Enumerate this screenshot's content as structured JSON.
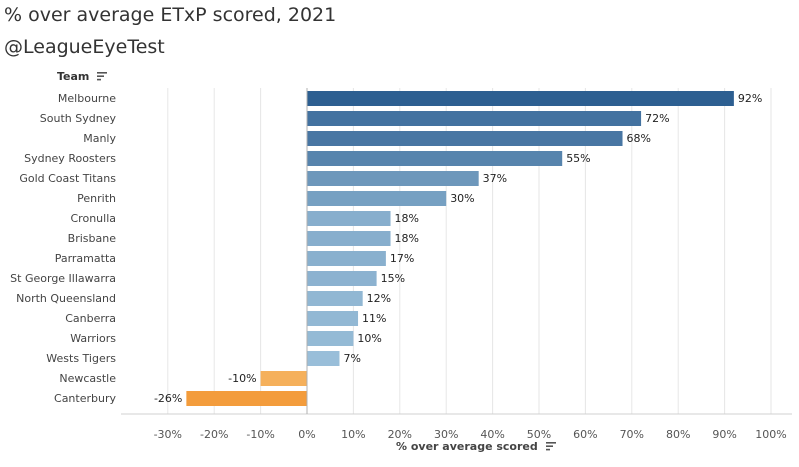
{
  "title": "% over average ETxP scored, 2021",
  "subtitle": "@LeagueEyeTest",
  "icons": {
    "sort": "sort-descending-icon"
  },
  "chart_data": {
    "type": "bar",
    "orientation": "horizontal",
    "category_header": "Team",
    "xlabel": "% over average scored",
    "xlim": [
      -35,
      105
    ],
    "xticks": [
      -30,
      -20,
      -10,
      0,
      10,
      20,
      30,
      40,
      50,
      60,
      70,
      80,
      90,
      100
    ],
    "xtick_labels": [
      "-30%",
      "-20%",
      "-10%",
      "0%",
      "10%",
      "20%",
      "30%",
      "40%",
      "50%",
      "60%",
      "70%",
      "80%",
      "90%",
      "100%"
    ],
    "grid": true,
    "categories": [
      "Melbourne",
      "South Sydney",
      "Manly",
      "Sydney Roosters",
      "Gold Coast Titans",
      "Penrith",
      "Cronulla",
      "Brisbane",
      "Parramatta",
      "St George Illawarra",
      "North Queensland",
      "Canberra",
      "Warriors",
      "Wests Tigers",
      "Newcastle",
      "Canterbury"
    ],
    "values": [
      92,
      72,
      68,
      55,
      37,
      30,
      18,
      18,
      17,
      15,
      12,
      11,
      10,
      7,
      -10,
      -26
    ],
    "data_labels": [
      "92%",
      "72%",
      "68%",
      "55%",
      "37%",
      "30%",
      "18%",
      "18%",
      "17%",
      "15%",
      "12%",
      "11%",
      "10%",
      "7%",
      "-10%",
      "-26%"
    ],
    "colors": {
      "positive_high": "#2d5f91",
      "positive_low": "#a9cce3",
      "negative_low": "#f7bd6e",
      "negative_high": "#f39c3c",
      "grid": "#e6e6e6",
      "zero_line": "#b0b0b0"
    }
  }
}
